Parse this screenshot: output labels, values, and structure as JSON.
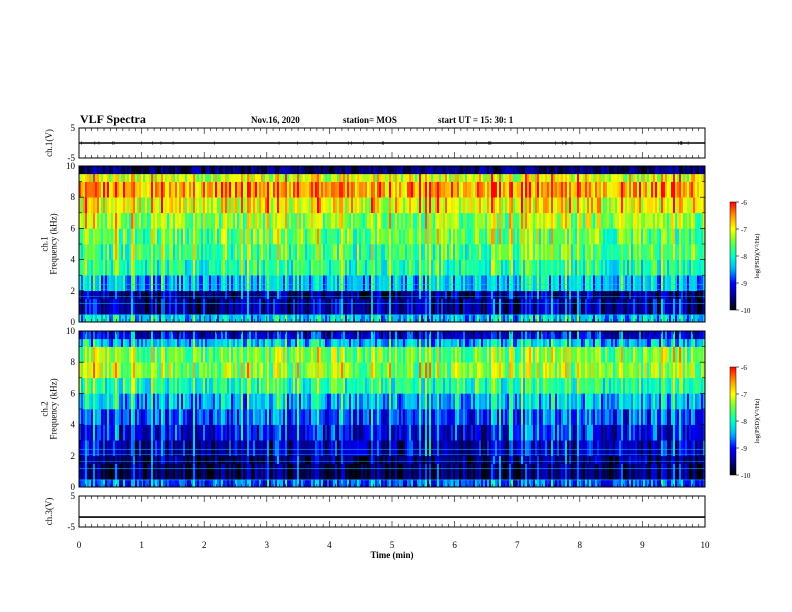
{
  "header": {
    "title": "VLF Spectra",
    "date": "Nov.16, 2020",
    "station": "station= MOS",
    "start": "start  UT =  15: 30: 1"
  },
  "colors": {
    "spectrum": [
      "#000000",
      "#00008c",
      "#0000ff",
      "#00b4ff",
      "#00ffc8",
      "#64ff3c",
      "#ffff00",
      "#ff9600",
      "#ff0000",
      "#ffffff"
    ]
  },
  "chart_data": [
    {
      "type": "line",
      "panel": "ch1-waveform",
      "ylabel": "ch.1(V)",
      "ylim": [
        -5,
        5
      ],
      "yticks": [
        "5",
        "-5"
      ],
      "x": [
        0,
        10
      ],
      "values": [
        0,
        0
      ]
    },
    {
      "type": "heatmap",
      "panel": "ch1-spectrogram",
      "ylabel": "ch.1\nFrequency (kHz)",
      "xlim": [
        0,
        10
      ],
      "ylim": [
        0,
        10
      ],
      "yticks": [
        "0",
        "2",
        "4",
        "6",
        "8",
        "10"
      ],
      "colorbar": {
        "label": "log(PSD)(V²/Hz)",
        "ticks": [
          "-6",
          "-7",
          "-8",
          "-9",
          "-10"
        ],
        "range": [
          -10,
          -6
        ]
      },
      "frequency_bands_khz": [
        0,
        0.5,
        1.5,
        2,
        3,
        4,
        5,
        6,
        7,
        8,
        9,
        9.5,
        10
      ],
      "band_mean_log_psd": [
        -8.6,
        -9.6,
        -9.7,
        -8.6,
        -8.1,
        -7.9,
        -7.8,
        -7.6,
        -7.2,
        -6.8,
        -7.3,
        -10
      ]
    },
    {
      "type": "heatmap",
      "panel": "ch2-spectrogram",
      "ylabel": "ch.2\nFrequency (kHz)",
      "xlim": [
        0,
        10
      ],
      "ylim": [
        0,
        10
      ],
      "yticks": [
        "0",
        "2",
        "4",
        "6",
        "8",
        "10"
      ],
      "colorbar": {
        "label": "log(PSD)(V²/Hz)",
        "ticks": [
          "-6",
          "-7",
          "-8",
          "-9",
          "-10"
        ],
        "range": [
          -10,
          -6
        ]
      },
      "frequency_bands_khz": [
        0,
        0.5,
        1.5,
        2,
        3,
        4,
        5,
        6,
        7,
        8,
        9,
        9.5,
        10
      ],
      "band_mean_log_psd": [
        -9.0,
        -9.9,
        -9.8,
        -9.5,
        -9.3,
        -9.0,
        -8.6,
        -8.1,
        -7.6,
        -7.7,
        -8.6,
        -9.4
      ]
    },
    {
      "type": "line",
      "panel": "ch3-waveform",
      "ylabel": "ch.3(V)",
      "ylim": [
        -5,
        5
      ],
      "yticks": [
        "5",
        "-5"
      ],
      "x": [
        0,
        10
      ],
      "values": [
        -1.8,
        -1.8
      ]
    }
  ],
  "axis": {
    "xlabel": "Time (min)",
    "xticks": [
      "0",
      "1",
      "2",
      "3",
      "4",
      "5",
      "6",
      "7",
      "8",
      "9",
      "10"
    ],
    "xlim": [
      0,
      10
    ]
  }
}
